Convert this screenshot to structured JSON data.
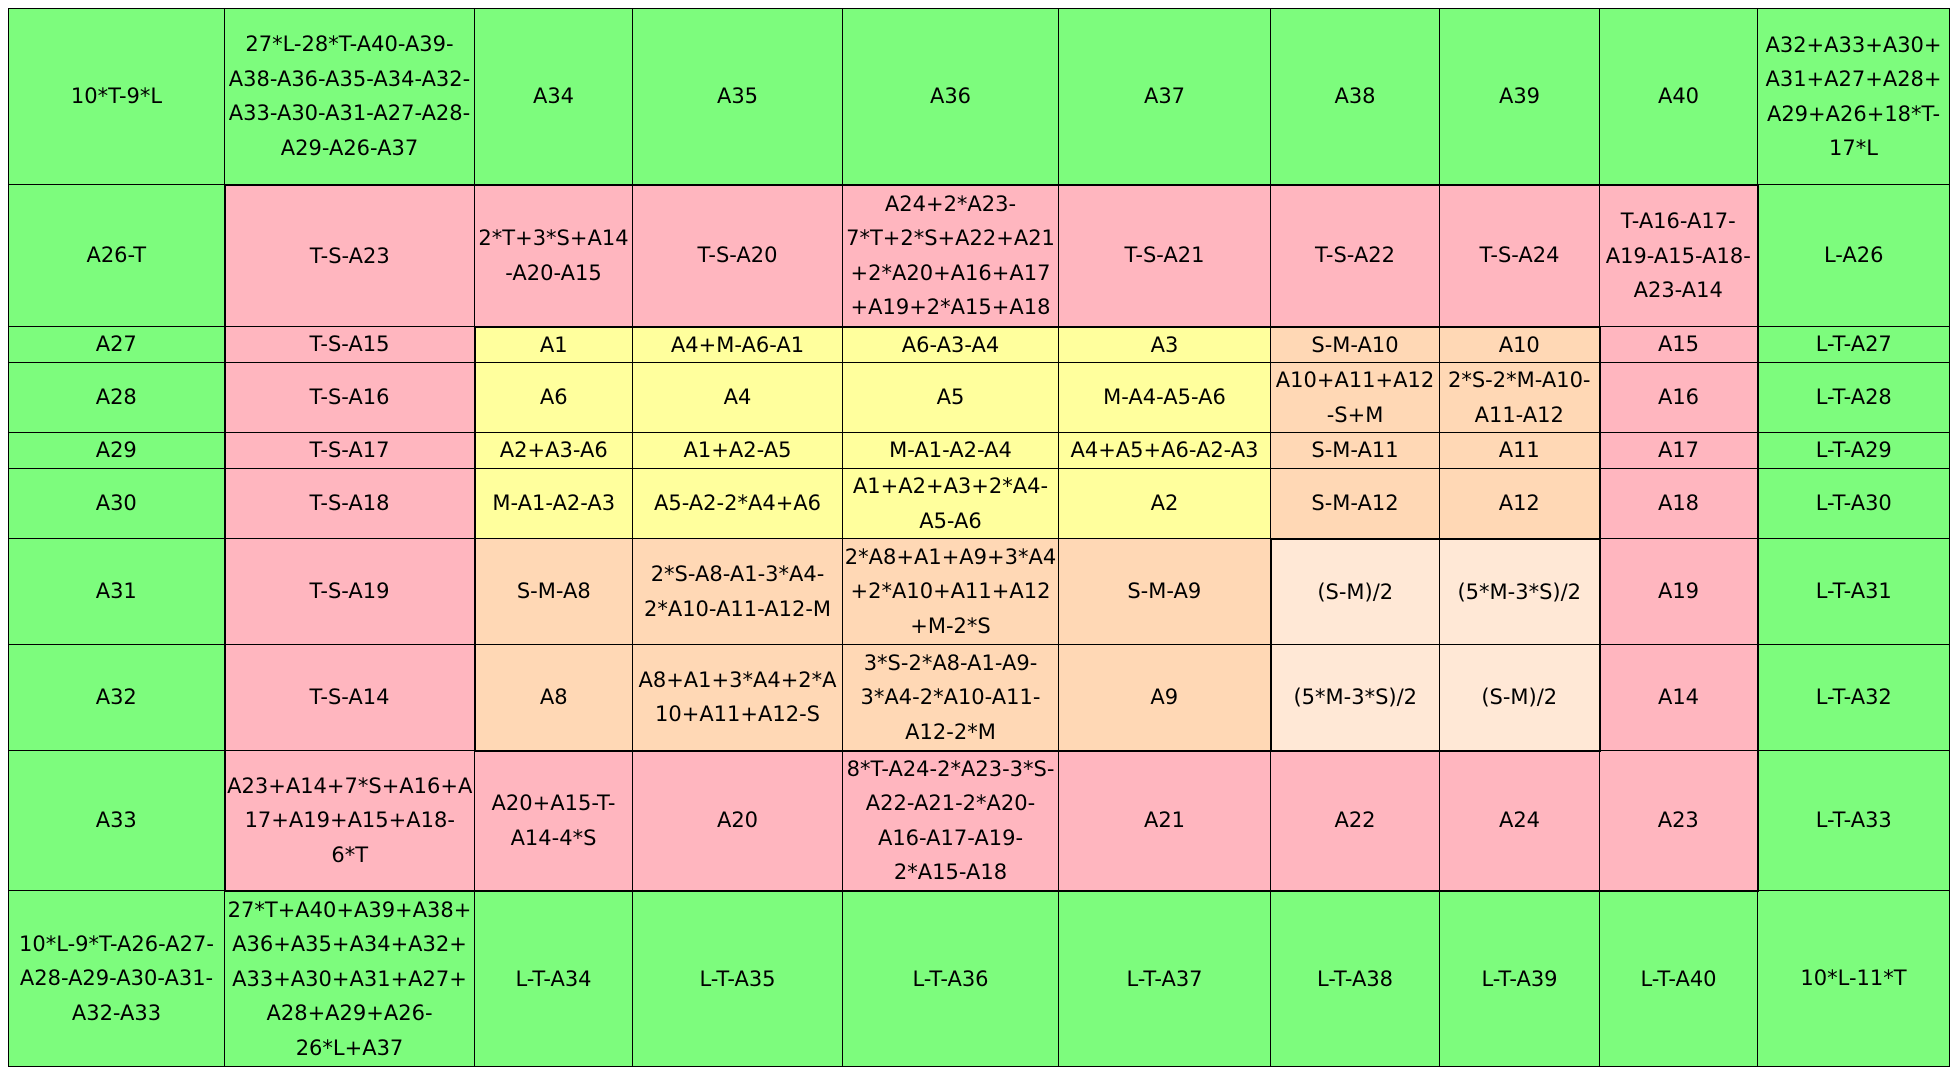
{
  "grid": {
    "rows": [
      [
        "10*T-9*L",
        "27*L-28*T-A40-A39-A38-A36-A35-A34-A32-A33-A30-A31-A27-A28-A29-A26-A37",
        "A34",
        "A35",
        "A36",
        "A37",
        "A38",
        "A39",
        "A40",
        "A32+A33+A30+A31+A27+A28+A29+A26+18*T-17*L"
      ],
      [
        "A26-T",
        "T-S-A23",
        "2*T+3*S+A14-A20-A15",
        "T-S-A20",
        "A24+2*A23-7*T+2*S+A22+A21+2*A20+A16+A17+A19+2*A15+A18",
        "T-S-A21",
        "T-S-A22",
        "T-S-A24",
        "T-A16-A17-A19-A15-A18-A23-A14",
        "L-A26"
      ],
      [
        "A27",
        "T-S-A15",
        "A1",
        "A4+M-A6-A1",
        "A6-A3-A4",
        "A3",
        "S-M-A10",
        "A10",
        "A15",
        "L-T-A27"
      ],
      [
        "A28",
        "T-S-A16",
        "A6",
        "A4",
        "A5",
        "M-A4-A5-A6",
        "A10+A11+A12-S+M",
        "2*S-2*M-A10-A11-A12",
        "A16",
        "L-T-A28"
      ],
      [
        "A29",
        "T-S-A17",
        "A2+A3-A6",
        "A1+A2-A5",
        "M-A1-A2-A4",
        "A4+A5+A6-A2-A3",
        "S-M-A11",
        "A11",
        "A17",
        "L-T-A29"
      ],
      [
        "A30",
        "T-S-A18",
        "M-A1-A2-A3",
        "A5-A2-2*A4+A6",
        "A1+A2+A3+2*A4-A5-A6",
        "A2",
        "S-M-A12",
        "A12",
        "A18",
        "L-T-A30"
      ],
      [
        "A31",
        "T-S-A19",
        "S-M-A8",
        "2*S-A8-A1-3*A4-2*A10-A11-A12-M",
        "2*A8+A1+A9+3*A4+2*A10+A11+A12+M-2*S",
        "S-M-A9",
        "(S-M)/2",
        "(5*M-3*S)/2",
        "A19",
        "L-T-A31"
      ],
      [
        "A32",
        "T-S-A14",
        "A8",
        "A8+A1+3*A4+2*A10+A11+A12-S",
        "3*S-2*A8-A1-A9-3*A4-2*A10-A11-A12-2*M",
        "A9",
        "(5*M-3*S)/2",
        "(S-M)/2",
        "A14",
        "L-T-A32"
      ],
      [
        "A33",
        "A23+A14+7*S+A16+A17+A19+A15+A18-6*T",
        "A20+A15-T-A14-4*S",
        "A20",
        "8*T-A24-2*A23-3*S-A22-A21-2*A20-A16-A17-A19-2*A15-A18",
        "A21",
        "A22",
        "A24",
        "A23",
        "L-T-A33"
      ],
      [
        "10*L-9*T-A26-A27-A28-A29-A30-A31-A32-A33",
        "27*T+A40+A39+A38+A36+A35+A34+A32+A33+A30+A31+A27+A28+A29+A26-26*L+A37",
        "L-T-A34",
        "L-T-A35",
        "L-T-A36",
        "L-T-A37",
        "L-T-A38",
        "L-T-A39",
        "L-T-A40",
        "10*L-11*T"
      ]
    ],
    "fills": [
      [
        "g",
        "g",
        "g",
        "g",
        "g",
        "g",
        "g",
        "g",
        "g",
        "g"
      ],
      [
        "g",
        "r",
        "r",
        "r",
        "r",
        "r",
        "r",
        "r",
        "r",
        "g"
      ],
      [
        "g",
        "r",
        "y",
        "y",
        "y",
        "y",
        "o",
        "o",
        "r",
        "g"
      ],
      [
        "g",
        "r",
        "y",
        "y",
        "y",
        "y",
        "o",
        "o",
        "r",
        "g"
      ],
      [
        "g",
        "r",
        "y",
        "y",
        "y",
        "y",
        "o",
        "o",
        "r",
        "g"
      ],
      [
        "g",
        "r",
        "y",
        "y",
        "y",
        "y",
        "o",
        "o",
        "r",
        "g"
      ],
      [
        "g",
        "r",
        "o",
        "o",
        "o",
        "o",
        "l",
        "l",
        "r",
        "g"
      ],
      [
        "g",
        "r",
        "o",
        "o",
        "o",
        "o",
        "l",
        "l",
        "r",
        "g"
      ],
      [
        "g",
        "r",
        "r",
        "r",
        "r",
        "r",
        "r",
        "r",
        "r",
        "g"
      ],
      [
        "g",
        "g",
        "g",
        "g",
        "g",
        "g",
        "g",
        "g",
        "g",
        "g"
      ]
    ],
    "colors": {
      "g": "#7dfc7d",
      "r": "#ffb6bf",
      "y": "#ffff9d",
      "o": "#ffd8b5",
      "l": "#ffe8d6"
    }
  }
}
